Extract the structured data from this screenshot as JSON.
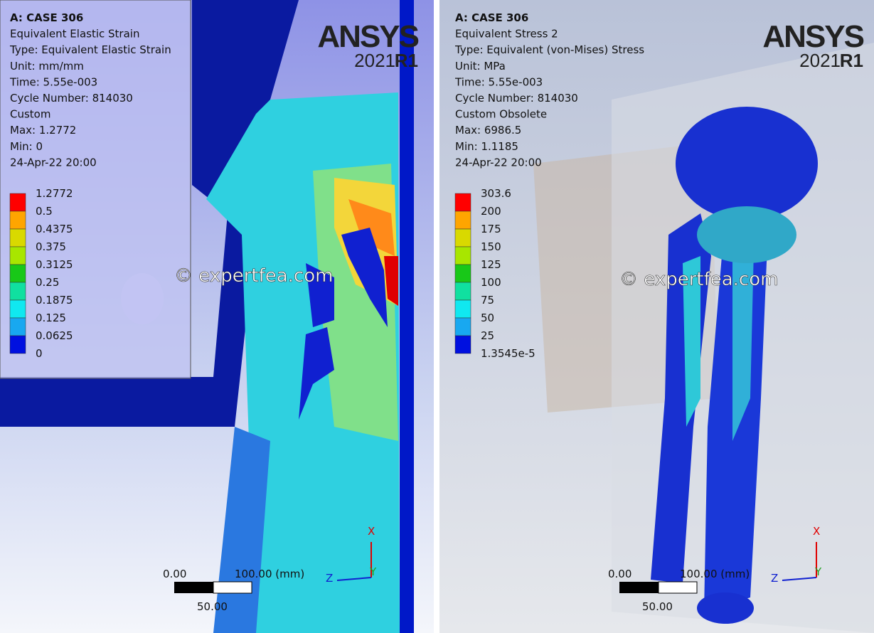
{
  "panels": [
    {
      "header": [
        "A: CASE 306",
        "Equivalent Elastic Strain",
        "Type: Equivalent Elastic Strain",
        "Unit: mm/mm",
        "Time: 5.55e-003",
        "Cycle Number: 814030",
        "Custom",
        "Max: 1.2772",
        "Min: 0",
        "24-Apr-22 20:00"
      ],
      "legend": [
        "1.2772",
        "0.5",
        "0.4375",
        "0.375",
        "0.3125",
        "0.25",
        "0.1875",
        "0.125",
        "0.0625",
        "0"
      ],
      "logo": {
        "name": "ANSYS",
        "year": "2021",
        "release": "R1"
      },
      "watermark": "© expertfea.com",
      "scale": {
        "start": "0.00",
        "end": "100.00 (mm)",
        "mid": "50.00"
      },
      "axes": {
        "x": "X",
        "y": "Y",
        "z": "Z"
      }
    },
    {
      "header": [
        "A: CASE 306",
        "Equivalent Stress 2",
        "Type: Equivalent (von-Mises) Stress",
        "Unit: MPa",
        "Time: 5.55e-003",
        "Cycle Number: 814030",
        "Custom Obsolete",
        "Max: 6986.5",
        "Min: 1.1185",
        "24-Apr-22 20:00"
      ],
      "legend": [
        "303.6",
        "200",
        "175",
        "150",
        "125",
        "100",
        "75",
        "50",
        "25",
        "1.3545e-5"
      ],
      "logo": {
        "name": "ANSYS",
        "year": "2021",
        "release": "R1"
      },
      "watermark": "© expertfea.com",
      "scale": {
        "start": "0.00",
        "end": "100.00 (mm)",
        "mid": "50.00"
      },
      "axes": {
        "x": "X",
        "y": "Y",
        "z": "Z"
      }
    }
  ]
}
